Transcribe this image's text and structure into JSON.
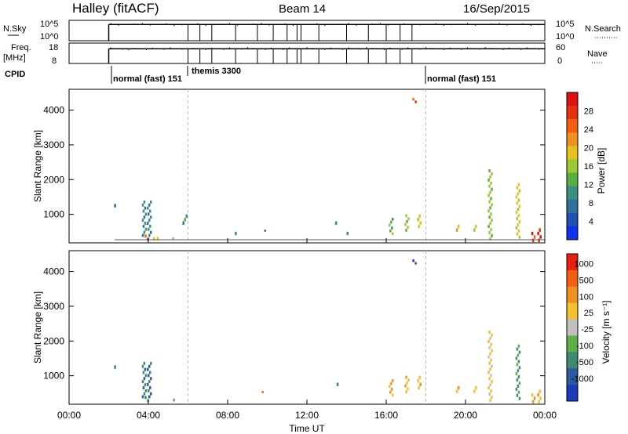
{
  "header": {
    "station": "Halley (fitACF)",
    "beam": "Beam 14",
    "date": "16/Sep/2015"
  },
  "nsky_panel": {
    "left_label": "N.Sky",
    "left_ticks": [
      "10^5",
      "10^0"
    ],
    "right_label": "N.Search",
    "right_ticks": [
      "10^5",
      "10^0"
    ],
    "level_value": 0.8
  },
  "freq_panel": {
    "left_label_1": "Freq.",
    "left_label_2": "[MHz]",
    "left_ticks": [
      "18",
      "8"
    ],
    "right_label": "Nave",
    "right_ticks": [
      "60",
      "0"
    ],
    "level_value": 0.72
  },
  "cpid": {
    "label": "CPID",
    "segments": [
      {
        "start_hour": 2.0,
        "label": "normal (fast) 151"
      },
      {
        "start_hour": 6.0,
        "label": "themis 3300"
      },
      {
        "start_hour": 18.0,
        "label": "normal (fast) 151"
      }
    ]
  },
  "time_axis": {
    "label": "Time UT",
    "ticks": [
      "00:00",
      "04:00",
      "08:00",
      "12:00",
      "16:00",
      "20:00",
      "00:00"
    ],
    "start_hour": 0,
    "end_hour": 24
  },
  "chart_data": [
    {
      "type": "heatmap",
      "title": "Power",
      "ylabel": "Slant Range [km]",
      "xlabel": "",
      "ylim": [
        180,
        4600
      ],
      "yticks": [
        "1000",
        "2000",
        "3000",
        "4000"
      ],
      "colorbar": {
        "label": "Power [dB]",
        "ticks": [
          "4",
          "8",
          "12",
          "16",
          "20",
          "24",
          "28"
        ],
        "colors": [
          "#1030f0",
          "#2050b0",
          "#30709a",
          "#3a9080",
          "#55b040",
          "#9cc830",
          "#e8c020",
          "#f09020",
          "#f06010",
          "#e83010",
          "#e01010"
        ]
      },
      "regions": [
        {
          "h": 2.35,
          "r0": 1200,
          "r1": 1300,
          "v": 0.25
        },
        {
          "h": 3.75,
          "r0": 350,
          "r1": 1400,
          "v": 0.25
        },
        {
          "h": 4.0,
          "r0": 350,
          "r1": 1400,
          "v": 0.25
        },
        {
          "h": 3.85,
          "r0": 240,
          "r1": 420,
          "v": 0.85
        },
        {
          "h": 4.2,
          "r0": 250,
          "r1": 350,
          "v": 0.55
        },
        {
          "h": 4.5,
          "r0": 250,
          "r1": 350,
          "v": 0.55
        },
        {
          "h": 5.2,
          "r0": 260,
          "r1": 340,
          "v": 0.55
        },
        {
          "h": 5.8,
          "r0": 700,
          "r1": 1000,
          "v": 0.3
        },
        {
          "h": 8.4,
          "r0": 400,
          "r1": 500,
          "v": 0.25
        },
        {
          "h": 9.8,
          "r0": 500,
          "r1": 560,
          "v": 0.3
        },
        {
          "h": 13.5,
          "r0": 700,
          "r1": 800,
          "v": 0.3
        },
        {
          "h": 14.0,
          "r0": 400,
          "r1": 500,
          "v": 0.25
        },
        {
          "h": 16.2,
          "r0": 400,
          "r1": 900,
          "v": 0.4
        },
        {
          "h": 17.0,
          "r0": 500,
          "r1": 1000,
          "v": 0.45
        },
        {
          "h": 17.6,
          "r0": 600,
          "r1": 1000,
          "v": 0.55
        },
        {
          "h": 17.4,
          "r0": 4200,
          "r1": 4350,
          "v": 0.85
        },
        {
          "h": 19.6,
          "r0": 500,
          "r1": 700,
          "v": 0.6
        },
        {
          "h": 20.4,
          "r0": 500,
          "r1": 700,
          "v": 0.55
        },
        {
          "h": 21.2,
          "r0": 250,
          "r1": 2300,
          "v": 0.45
        },
        {
          "h": 22.6,
          "r0": 300,
          "r1": 1900,
          "v": 0.55
        },
        {
          "h": 23.4,
          "r0": 200,
          "r1": 500,
          "v": 0.9
        },
        {
          "h": 23.7,
          "r0": 200,
          "r1": 600,
          "v": 0.95
        }
      ]
    },
    {
      "type": "heatmap",
      "title": "Velocity",
      "ylabel": "Slant Range [km]",
      "xlabel": "",
      "ylim": [
        180,
        4600
      ],
      "yticks": [
        "1000",
        "2000",
        "3000",
        "4000"
      ],
      "colorbar": {
        "label": "Velocity [m s⁻¹]",
        "ticks": [
          "1000",
          "500",
          "100",
          "25",
          "-25",
          "-100",
          "-500",
          "-1000"
        ],
        "colors": [
          "#1a3ab8",
          "#2d5aa0",
          "#3f8a70",
          "#5cb048",
          "#c0c0c0",
          "#f2c030",
          "#f09020",
          "#f06010",
          "#e82010"
        ]
      },
      "regions": [
        {
          "h": 2.35,
          "r0": 1200,
          "r1": 1300,
          "v": -0.4
        },
        {
          "h": 3.75,
          "r0": 350,
          "r1": 1400,
          "v": -0.6
        },
        {
          "h": 4.0,
          "r0": 350,
          "r1": 1400,
          "v": -0.7
        },
        {
          "h": 3.85,
          "r0": 240,
          "r1": 420,
          "v": -0.3
        },
        {
          "h": 5.2,
          "r0": 260,
          "r1": 340,
          "v": -0.2
        },
        {
          "h": 9.8,
          "r0": 500,
          "r1": 560,
          "v": 0.7
        },
        {
          "h": 13.5,
          "r0": 700,
          "r1": 800,
          "v": -0.3
        },
        {
          "h": 16.2,
          "r0": 400,
          "r1": 900,
          "v": 0.4
        },
        {
          "h": 17.0,
          "r0": 500,
          "r1": 1000,
          "v": 0.35
        },
        {
          "h": 17.6,
          "r0": 600,
          "r1": 1000,
          "v": 0.3
        },
        {
          "h": 17.4,
          "r0": 4200,
          "r1": 4350,
          "v": -0.9
        },
        {
          "h": 19.6,
          "r0": 500,
          "r1": 700,
          "v": 0.3
        },
        {
          "h": 20.4,
          "r0": 500,
          "r1": 700,
          "v": 0.25
        },
        {
          "h": 21.2,
          "r0": 250,
          "r1": 2300,
          "v": 0.2
        },
        {
          "h": 22.6,
          "r0": 300,
          "r1": 1900,
          "v": -0.4
        },
        {
          "h": 23.4,
          "r0": 200,
          "r1": 500,
          "v": 0.4
        },
        {
          "h": 23.7,
          "r0": 200,
          "r1": 600,
          "v": 0.3
        }
      ]
    }
  ]
}
